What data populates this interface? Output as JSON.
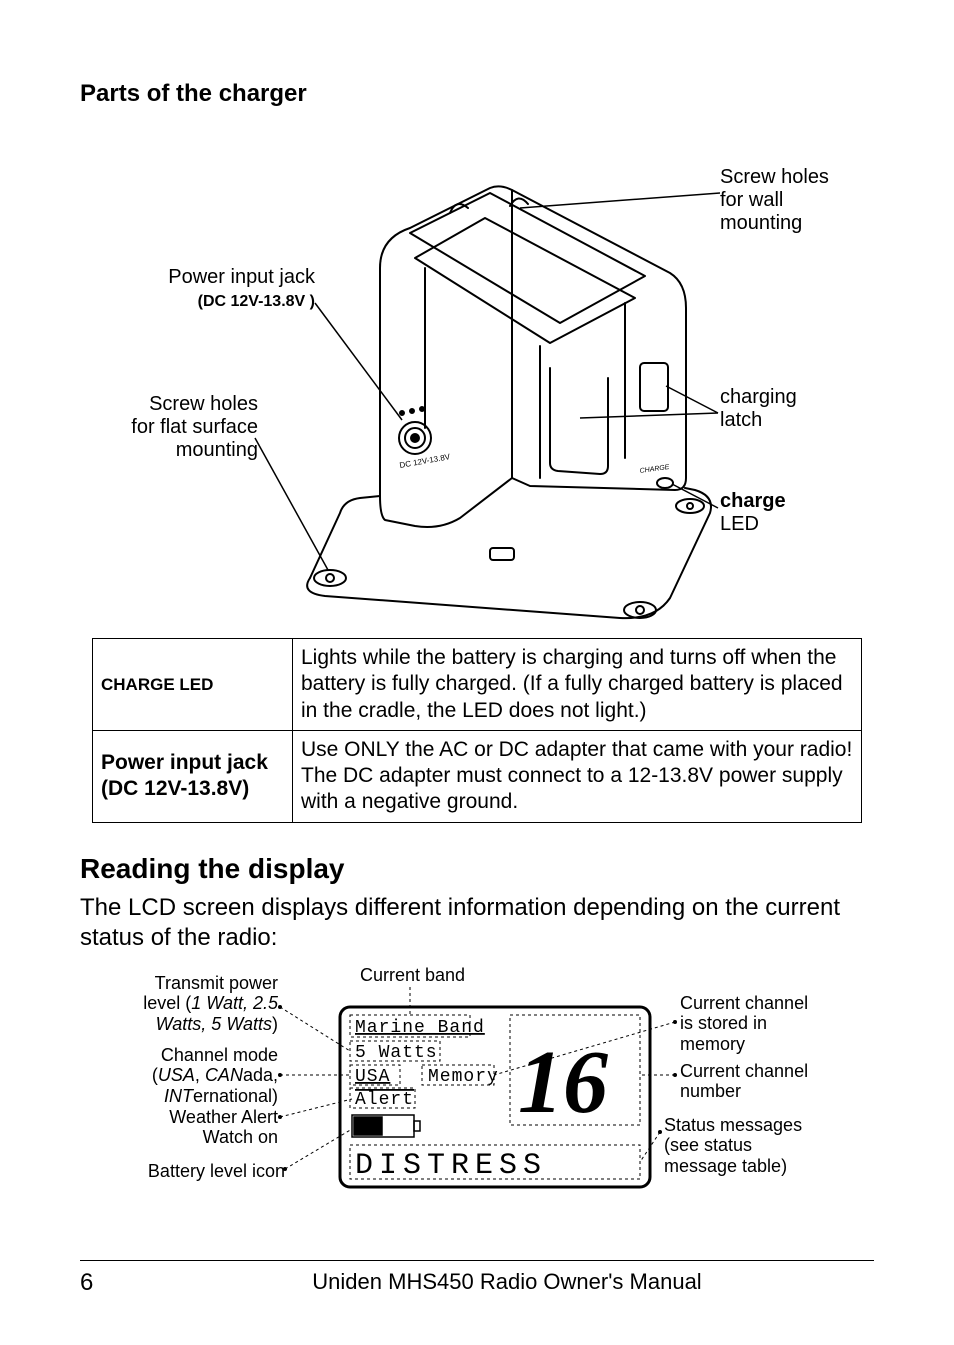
{
  "charger": {
    "heading": "Parts of the charger",
    "callouts": {
      "screw_wall": "Screw holes\nfor wall\nmounting",
      "power_jack_line1": "Power input jack",
      "power_jack_line2": "(DC 12V-13.8V )",
      "screw_flat": "Screw holes\nfor flat surface\nmounting",
      "charging_latch": "charging\nlatch",
      "charge_led_bold": "charge",
      "charge_led_sub": "LED"
    },
    "svg_text": {
      "dc_label": "DC 12V-13.8V",
      "charge_label": "CHARGE"
    },
    "table": [
      {
        "label_html": "<span style='font-weight:bold;font-size:17px;'>CHARGE LED</span>",
        "desc": "Lights while the battery is charging and turns off when the battery is fully charged. (If a fully charged battery is placed in the cradle, the LED does not light.)"
      },
      {
        "label_html": "<b>Power input jack</b><br><b>(DC 12V-13.8V)</b>",
        "desc": "Use ONLY the AC or DC adapter that came with your radio! The DC adapter must connect to a 12-13.8V power supply with a negative ground."
      }
    ]
  },
  "display": {
    "heading": "Reading the display",
    "intro": "The LCD screen displays different information depending on the current status of the radio:",
    "callouts": {
      "tx_power": "Transmit power\nlevel (<i>1 Watt, 2.5\nWatts, 5 Watts</i>)",
      "channel_mode": "Channel mode\n(<i>USA</i>, <i>CAN</i>ada,\n<i>INT</i>ernational)",
      "wx_alert": "Weather Alert\nWatch on",
      "battery": "Battery level icon",
      "current_band": "Current band",
      "mem": "Current channel\nis stored in\nmemory",
      "chan_num": "Current channel\nnumber",
      "status": "Status messages\n(see status\nmessage table)"
    },
    "lcd": {
      "band": "Marine Band",
      "watts": "5 Watts",
      "usa": "USA",
      "memory": "Memory",
      "alert": "Alert",
      "channel": "16",
      "distress": "DISTRESS"
    }
  },
  "footer": {
    "page": "6",
    "title": "Uniden MHS450 Radio Owner's Manual"
  }
}
